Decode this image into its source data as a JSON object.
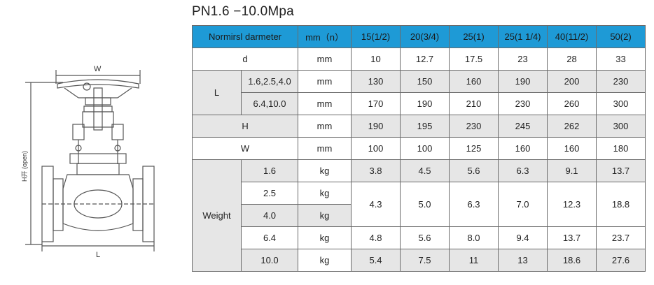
{
  "title": "PN1.6 −10.0Mpa",
  "drawing": {
    "label_w": "W",
    "label_l": "L",
    "label_h": "H开 (open)"
  },
  "table": {
    "header": {
      "name": "Normirsl  darmeter",
      "unit": "mm（n）",
      "sizes": [
        "15(1/2)",
        "20(3/4)",
        "25(1)",
        "25(1 1/4)",
        "40(11/2)",
        "50(2)"
      ]
    },
    "d": {
      "label": "d",
      "unit": "mm",
      "values": [
        "10",
        "12.7",
        "17.5",
        "23",
        "28",
        "33"
      ]
    },
    "L": {
      "label": "L",
      "rows": [
        {
          "sub": "1.6,2.5,4.0",
          "unit": "mm",
          "values": [
            "130",
            "150",
            "160",
            "190",
            "200",
            "230"
          ]
        },
        {
          "sub": "6.4,10.0",
          "unit": "mm",
          "values": [
            "170",
            "190",
            "210",
            "230",
            "260",
            "300"
          ]
        }
      ]
    },
    "H": {
      "label": "H",
      "unit": "mm",
      "values": [
        "190",
        "195",
        "230",
        "245",
        "262",
        "300"
      ]
    },
    "W": {
      "label": "W",
      "unit": "mm",
      "values": [
        "100",
        "100",
        "125",
        "160",
        "160",
        "180"
      ]
    },
    "weight": {
      "label": "Weight",
      "r16": {
        "sub": "1.6",
        "unit": "kg",
        "values": [
          "3.8",
          "4.5",
          "5.6",
          "6.3",
          "9.1",
          "13.7"
        ]
      },
      "r25": {
        "sub": "2.5",
        "unit": "kg"
      },
      "r40": {
        "sub": "4.0",
        "unit": "kg"
      },
      "merged": [
        "4.3",
        "5.0",
        "6.3",
        "7.0",
        "12.3",
        "18.8"
      ],
      "r64": {
        "sub": "6.4",
        "unit": "kg",
        "values": [
          "4.8",
          "5.6",
          "8.0",
          "9.4",
          "13.7",
          "23.7"
        ]
      },
      "r100": {
        "sub": "10.0",
        "unit": "kg",
        "values": [
          "5.4",
          "7.5",
          "11",
          "13",
          "18.6",
          "27.6"
        ]
      }
    }
  }
}
